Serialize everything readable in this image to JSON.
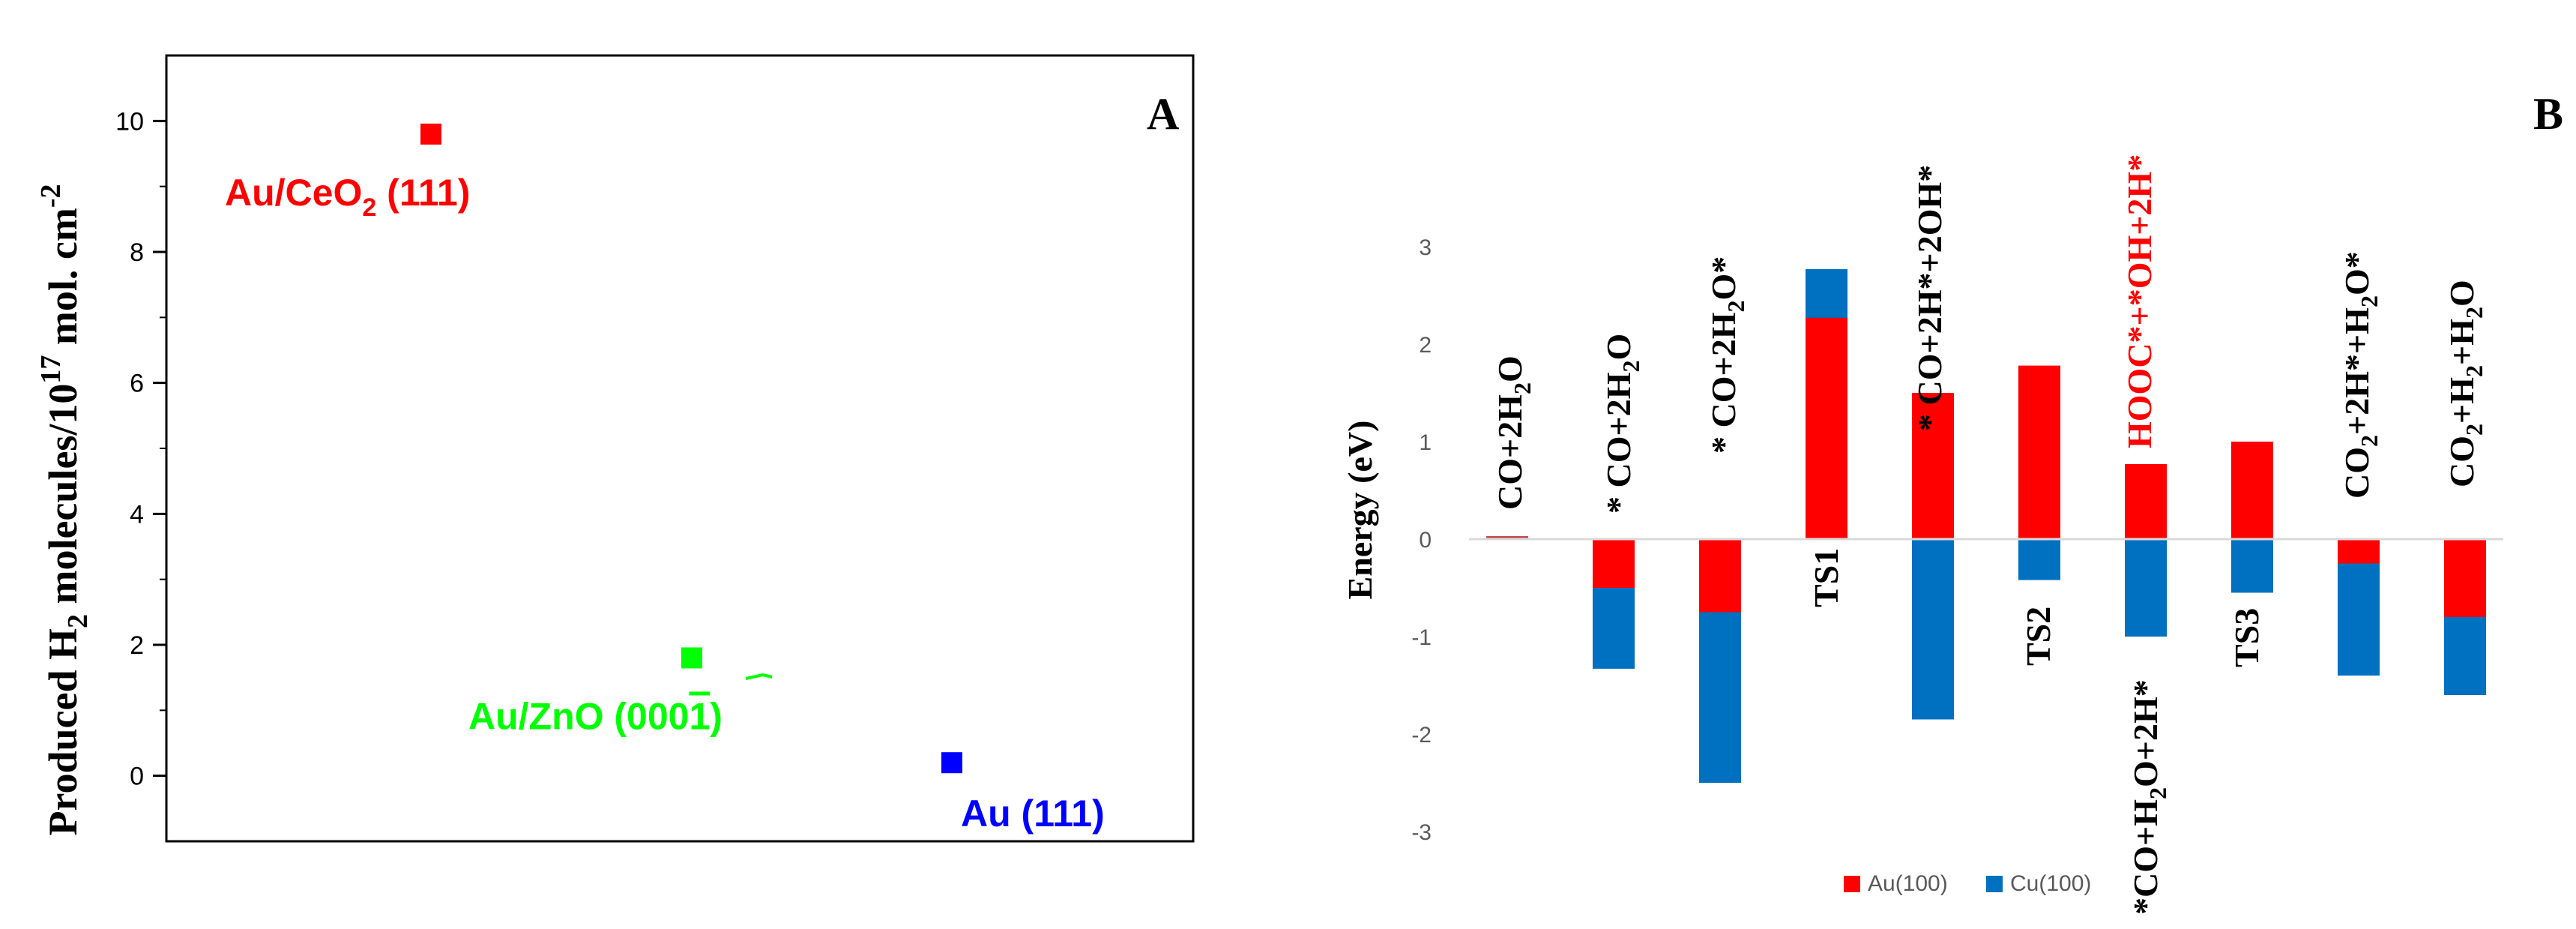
{
  "panel_a": {
    "label": "A",
    "ylabel": {
      "part1": "Produced H",
      "sub1": "2",
      "part2": " molecules/10",
      "sup1": "17",
      "part3": " mol. cm",
      "sup2": "-2"
    }
  },
  "panel_b": {
    "label": "B",
    "ylabel": "Energy (eV)",
    "legend": [
      "Au(100)",
      "Cu(100)"
    ]
  },
  "chart_data": [
    {
      "type": "scatter",
      "title": "",
      "xlabel": "",
      "ylabel": "Produced H2 molecules/10^17 mol. cm^-2",
      "ylim": [
        -1,
        11
      ],
      "yticks": [
        "0",
        "2",
        "4",
        "6",
        "8",
        "10"
      ],
      "xticks_visible": false,
      "grid": false,
      "points": [
        {
          "id": "ceo2",
          "x": 1,
          "y": 9.8,
          "color": "#ff0000",
          "label": "Au/CeO",
          "label_sub": "2",
          "label_rest": " (111)"
        },
        {
          "id": "zno",
          "x": 2,
          "y": 1.8,
          "color": "#00ff00",
          "label": "Au/ZnO (000",
          "label_over": "1",
          "label_rest": ")"
        },
        {
          "id": "au",
          "x": 3,
          "y": 0.2,
          "color": "#0000ff",
          "label": "Au (111)",
          "label_sub": "",
          "label_rest": ""
        }
      ]
    },
    {
      "type": "bar",
      "title": "",
      "xlabel": "",
      "ylabel": "Energy (eV)",
      "ylim": [
        -3,
        3
      ],
      "yticks": [
        "3",
        "2",
        "1",
        "0",
        "-1",
        "-2",
        "-3"
      ],
      "grid": false,
      "legend_position": "bottom",
      "series": [
        {
          "name": "Au(100)",
          "color": "#ff0000",
          "values": [
            0.03,
            -0.5,
            -0.75,
            2.27,
            1.5,
            1.78,
            0.77,
            1.0,
            -0.25,
            -0.8
          ]
        },
        {
          "name": "Cu(100)",
          "color": "#0070c0",
          "values": [
            0.0,
            -1.33,
            -2.5,
            2.77,
            -1.85,
            -0.42,
            -1.0,
            -0.55,
            -1.4,
            -1.6
          ]
        }
      ],
      "annotations": [
        {
          "parts": [
            [
              "CO+2H",
              ""
            ],
            [
              "2",
              "sub"
            ],
            [
              "O",
              ""
            ]
          ],
          "color": "#000000"
        },
        {
          "parts": [
            [
              "* CO+2H",
              ""
            ],
            [
              "2",
              "sub"
            ],
            [
              "O",
              ""
            ]
          ],
          "color": "#000000"
        },
        {
          "parts": [
            [
              "* CO+2H",
              ""
            ],
            [
              "2",
              "sub"
            ],
            [
              "O*",
              ""
            ]
          ],
          "color": "#000000"
        },
        {
          "parts": [
            [
              "TS1",
              ""
            ]
          ],
          "color": "#000000"
        },
        {
          "parts": [
            [
              "* CO+2H*+2OH*",
              ""
            ]
          ],
          "color": "#000000"
        },
        {
          "parts": [
            [
              "TS2",
              ""
            ]
          ],
          "color": "#000000"
        },
        {
          "parts": [
            [
              "HOOC*+*OH+2H*",
              ""
            ]
          ],
          "color": "#ff0000"
        },
        {
          "parts": [
            [
              "TS3",
              ""
            ]
          ],
          "color": "#000000"
        },
        {
          "parts": [
            [
              "CO",
              ""
            ],
            [
              "2",
              "sub"
            ],
            [
              "+2H*+H",
              ""
            ],
            [
              "2",
              "sub"
            ],
            [
              "O*",
              ""
            ]
          ],
          "color": "#000000"
        },
        {
          "parts": [
            [
              "CO",
              ""
            ],
            [
              "2",
              "sub"
            ],
            [
              "+H",
              ""
            ],
            [
              "2",
              "sub"
            ],
            [
              "+H",
              ""
            ],
            [
              "2",
              "sub"
            ],
            [
              "O",
              ""
            ]
          ],
          "color": "#000000"
        },
        {
          "parts": [
            [
              "*CO+H",
              ""
            ],
            [
              "2",
              "sub"
            ],
            [
              "O+2H*",
              ""
            ]
          ],
          "color": "#000000"
        }
      ]
    }
  ]
}
